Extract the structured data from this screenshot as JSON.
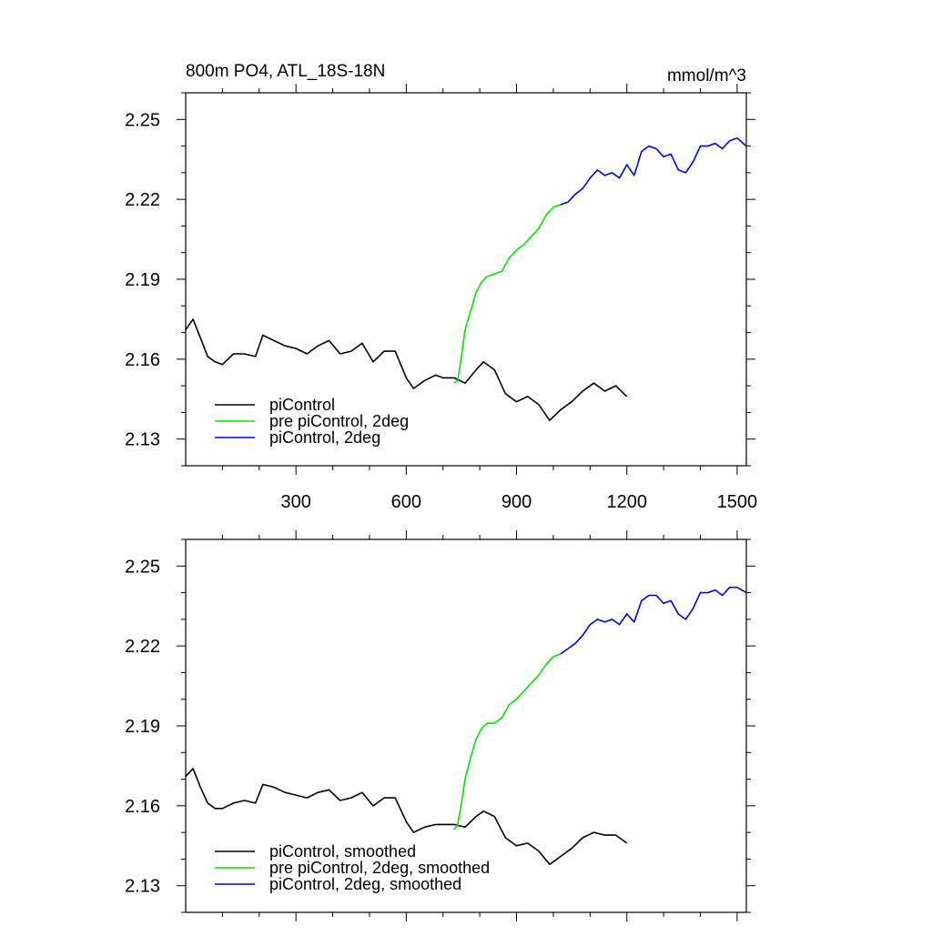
{
  "chart_data": [
    {
      "type": "line",
      "title": "800m PO4, ATL_18S-18N",
      "units": "mmol/m^3",
      "xlabel": "",
      "ylabel": "",
      "xlim": [
        0,
        1525
      ],
      "ylim": [
        2.12,
        2.26
      ],
      "xticks": [
        300,
        600,
        900,
        1200,
        1500
      ],
      "yticks": [
        2.13,
        2.16,
        2.19,
        2.22,
        2.25
      ],
      "legend_position": "bottom-left",
      "grid": false,
      "series": [
        {
          "name": "piControl",
          "color": "#000000",
          "x": [
            0,
            20,
            40,
            60,
            80,
            100,
            130,
            160,
            190,
            210,
            240,
            270,
            300,
            330,
            360,
            390,
            420,
            450,
            480,
            510,
            540,
            570,
            600,
            620,
            650,
            680,
            700,
            730,
            760,
            790,
            810,
            840,
            870,
            900,
            930,
            960,
            990,
            1020,
            1050,
            1080,
            1110,
            1140,
            1170,
            1200
          ],
          "y": [
            2.171,
            2.175,
            2.168,
            2.161,
            2.159,
            2.158,
            2.162,
            2.162,
            2.161,
            2.169,
            2.167,
            2.165,
            2.164,
            2.162,
            2.165,
            2.167,
            2.162,
            2.163,
            2.166,
            2.159,
            2.163,
            2.163,
            2.153,
            2.149,
            2.152,
            2.154,
            2.153,
            2.153,
            2.151,
            2.156,
            2.159,
            2.156,
            2.147,
            2.144,
            2.146,
            2.143,
            2.137,
            2.141,
            2.144,
            2.148,
            2.151,
            2.148,
            2.15,
            2.146
          ]
        },
        {
          "name": "pre piControl, 2deg",
          "color": "#00e600",
          "x": [
            730,
            740,
            750,
            760,
            775,
            790,
            805,
            820,
            840,
            860,
            880,
            900,
            920,
            940,
            960,
            980,
            1000,
            1020
          ],
          "y": [
            2.151,
            2.152,
            2.161,
            2.171,
            2.178,
            2.185,
            2.189,
            2.191,
            2.192,
            2.193,
            2.198,
            2.201,
            2.203,
            2.206,
            2.209,
            2.214,
            2.217,
            2.218
          ]
        },
        {
          "name": "piControl, 2deg",
          "color": "#0000e6",
          "x": [
            1020,
            1040,
            1060,
            1080,
            1100,
            1120,
            1140,
            1160,
            1180,
            1200,
            1220,
            1240,
            1260,
            1280,
            1300,
            1320,
            1340,
            1360,
            1380,
            1400,
            1420,
            1440,
            1460,
            1480,
            1500,
            1525
          ],
          "y": [
            2.218,
            2.219,
            2.222,
            2.224,
            2.228,
            2.231,
            2.229,
            2.23,
            2.228,
            2.233,
            2.229,
            2.238,
            2.24,
            2.239,
            2.236,
            2.237,
            2.231,
            2.23,
            2.234,
            2.24,
            2.24,
            2.241,
            2.239,
            2.242,
            2.243,
            2.24
          ]
        }
      ]
    },
    {
      "type": "line",
      "title": "",
      "xlabel": "",
      "ylabel": "",
      "xlim": [
        0,
        1525
      ],
      "ylim": [
        2.12,
        2.26
      ],
      "xticks": [
        300,
        600,
        900,
        1200,
        1500
      ],
      "yticks": [
        2.13,
        2.16,
        2.19,
        2.22,
        2.25
      ],
      "legend_position": "bottom-left",
      "grid": false,
      "series": [
        {
          "name": "piControl, smoothed",
          "color": "#000000",
          "x": [
            0,
            20,
            40,
            60,
            80,
            100,
            130,
            160,
            190,
            210,
            240,
            270,
            300,
            330,
            360,
            390,
            420,
            450,
            480,
            510,
            540,
            570,
            600,
            620,
            650,
            680,
            700,
            730,
            760,
            790,
            810,
            840,
            870,
            900,
            930,
            960,
            990,
            1020,
            1050,
            1080,
            1110,
            1140,
            1170,
            1200
          ],
          "y": [
            2.171,
            2.174,
            2.167,
            2.161,
            2.159,
            2.159,
            2.161,
            2.162,
            2.161,
            2.168,
            2.167,
            2.165,
            2.164,
            2.163,
            2.165,
            2.166,
            2.162,
            2.163,
            2.165,
            2.16,
            2.163,
            2.163,
            2.154,
            2.15,
            2.152,
            2.153,
            2.153,
            2.153,
            2.152,
            2.156,
            2.158,
            2.156,
            2.148,
            2.145,
            2.146,
            2.143,
            2.138,
            2.141,
            2.144,
            2.148,
            2.15,
            2.149,
            2.149,
            2.146
          ]
        },
        {
          "name": "pre piControl, 2deg, smoothed",
          "color": "#00e600",
          "x": [
            730,
            740,
            750,
            760,
            775,
            790,
            805,
            820,
            840,
            860,
            880,
            900,
            920,
            940,
            960,
            980,
            1000,
            1020
          ],
          "y": [
            2.151,
            2.153,
            2.161,
            2.17,
            2.178,
            2.185,
            2.189,
            2.191,
            2.191,
            2.193,
            2.198,
            2.2,
            2.203,
            2.206,
            2.209,
            2.213,
            2.216,
            2.217
          ]
        },
        {
          "name": "piControl, 2deg, smoothed",
          "color": "#0000e6",
          "x": [
            1020,
            1040,
            1060,
            1080,
            1100,
            1120,
            1140,
            1160,
            1180,
            1200,
            1220,
            1240,
            1260,
            1280,
            1300,
            1320,
            1340,
            1360,
            1380,
            1400,
            1420,
            1440,
            1460,
            1480,
            1500,
            1525
          ],
          "y": [
            2.217,
            2.219,
            2.221,
            2.224,
            2.228,
            2.23,
            2.229,
            2.23,
            2.228,
            2.232,
            2.229,
            2.237,
            2.239,
            2.239,
            2.236,
            2.237,
            2.232,
            2.23,
            2.234,
            2.24,
            2.24,
            2.241,
            2.239,
            2.242,
            2.242,
            2.24
          ]
        }
      ]
    }
  ]
}
